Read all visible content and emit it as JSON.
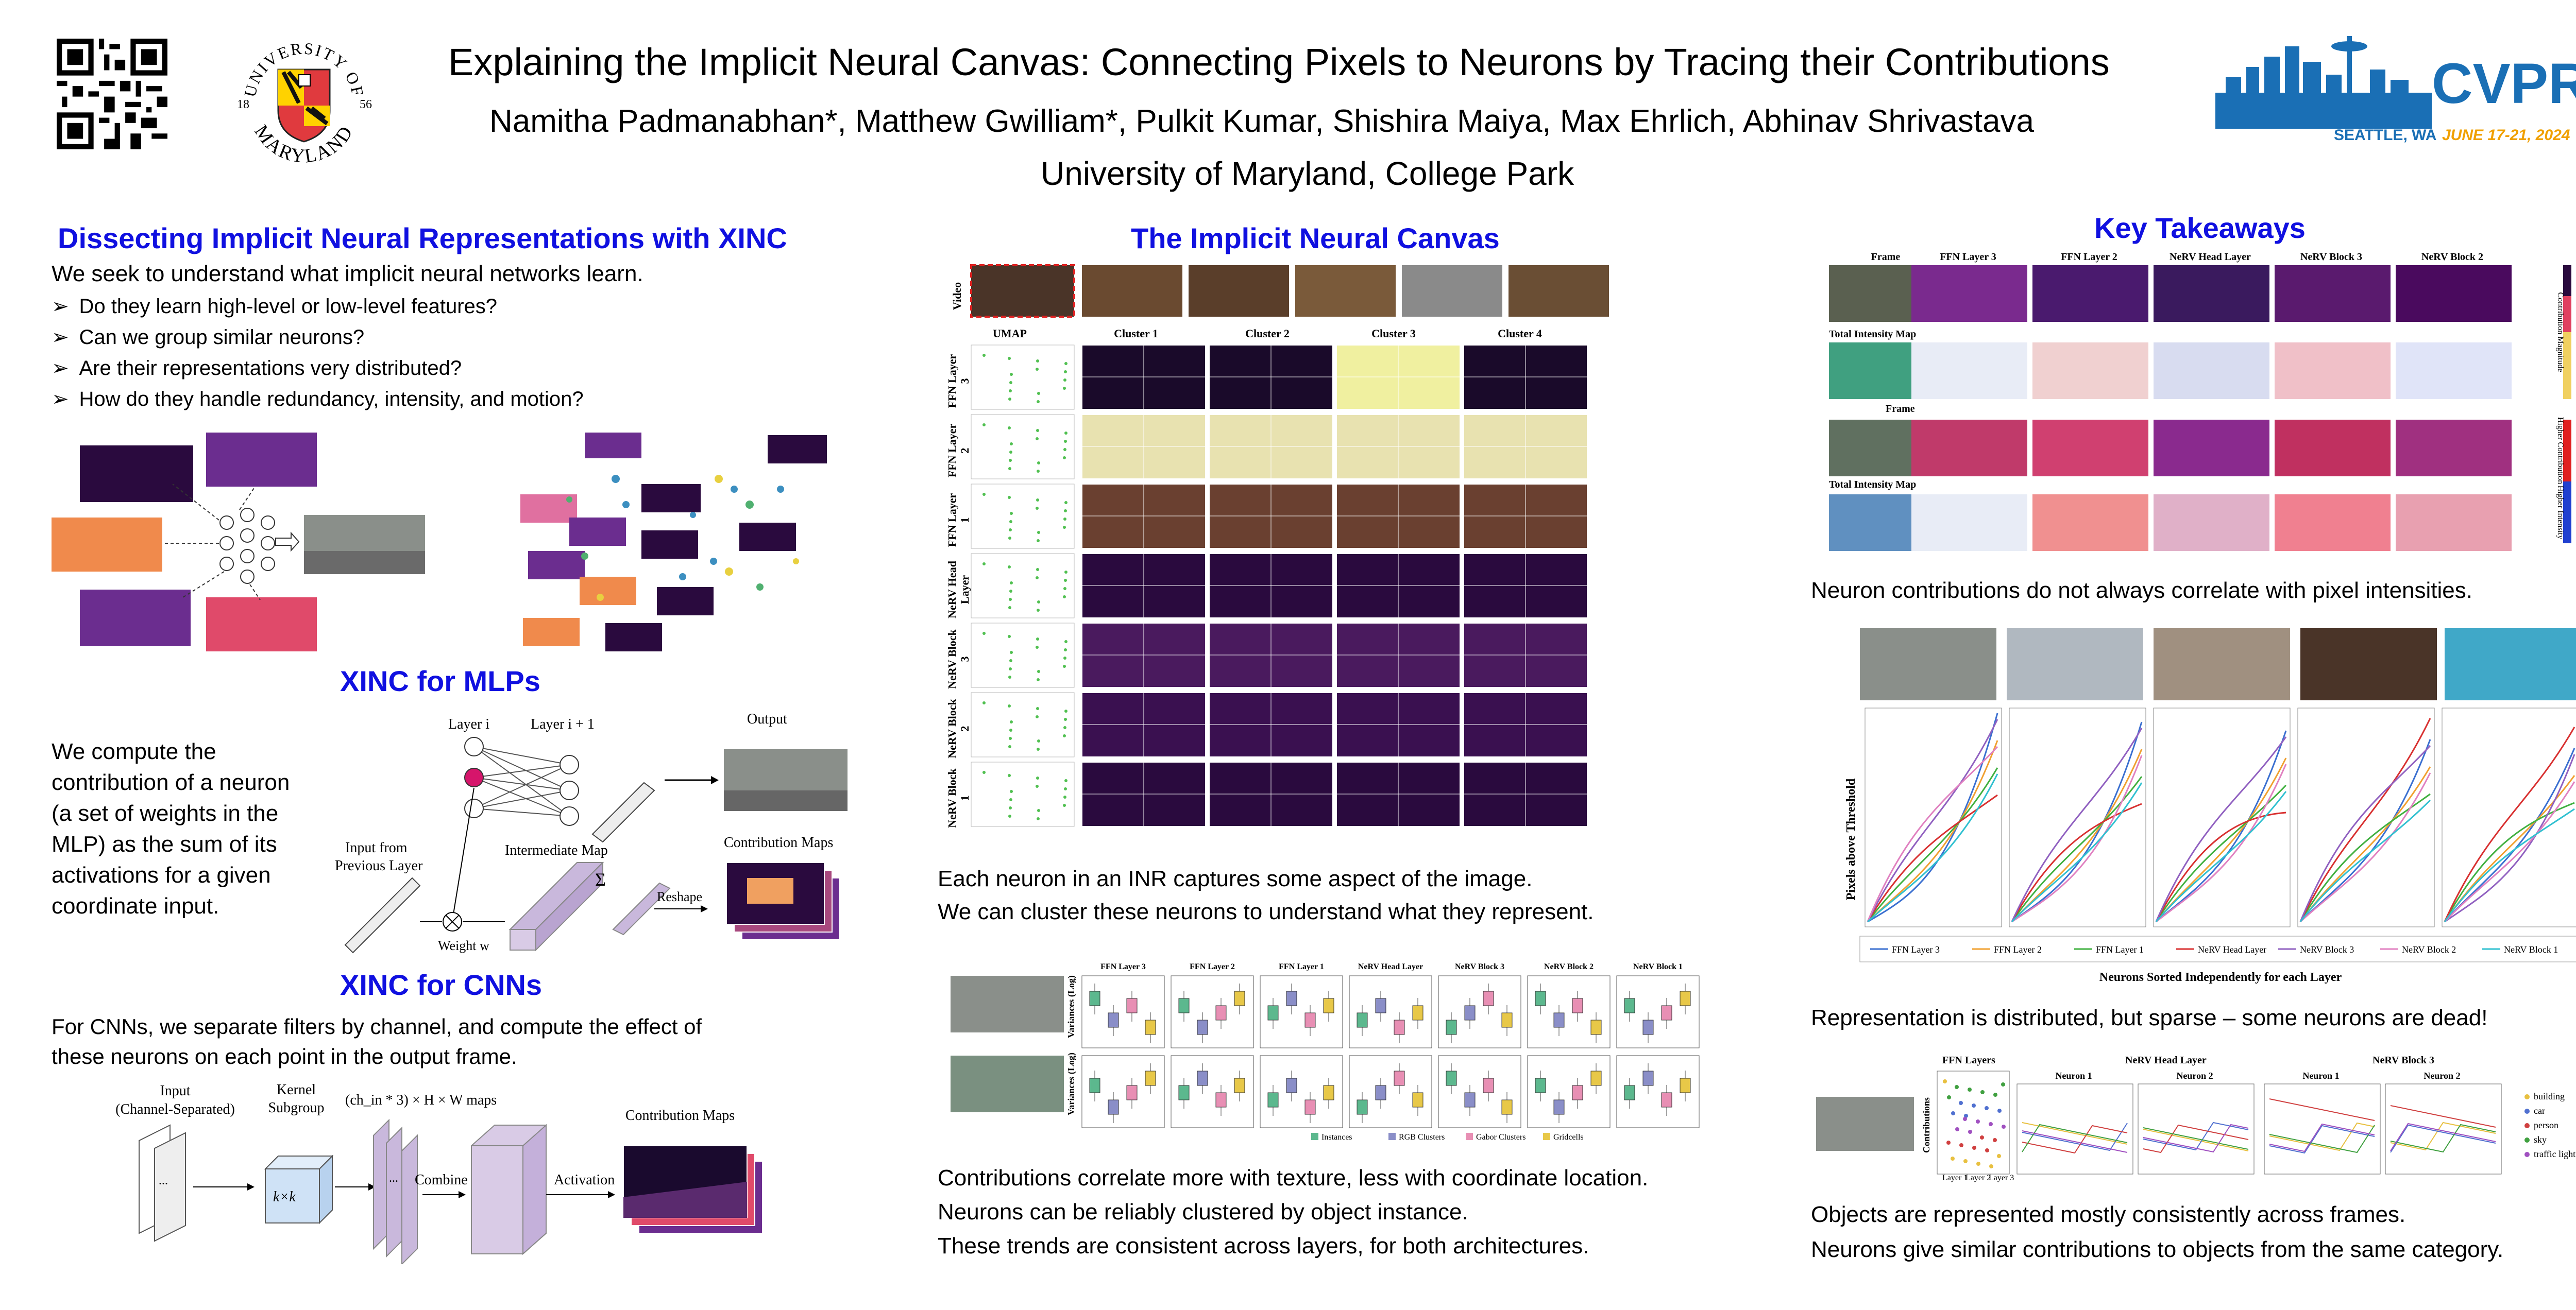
{
  "header": {
    "title": "Explaining the Implicit Neural Canvas: Connecting Pixels to Neurons by Tracing their Contributions",
    "authors": "Namitha Padmanabhan*, Matthew Gwilliam*, Pulkit Kumar, Shishira Maiya, Max Ehrlich, Abhinav Shrivastava",
    "affiliation": "University of Maryland, College Park",
    "umd_top": "UNIVERSITY OF",
    "umd_bottom": "MARYLAND",
    "umd_left": "18",
    "umd_right": "56",
    "cvpr": "CVPR",
    "cvpr_location": "SEATTLE, WA",
    "cvpr_dates": "JUNE 17-21, 2024"
  },
  "colors": {
    "heading": "#1010e0",
    "cvpr": "#1a6fb5",
    "umd_red": "#e03a3e",
    "umd_gold": "#ffd200",
    "magenta": "#d6156b",
    "map_purple": "#c9b8dc"
  },
  "left": {
    "heading": "Dissecting Implicit Neural Representations with XINC",
    "intro": "We seek to understand what implicit neural networks learn.",
    "bullets": [
      "Do they learn high-level or low-level features?",
      "Can we group similar neurons?",
      "Are their representations very distributed?",
      "How do they handle redundancy, intensity, and motion?"
    ],
    "mlp_heading": "XINC for MLPs",
    "mlp_text": [
      "We compute the",
      "contribution of a neuron",
      "(a set of weights in the",
      "MLP) as the sum of its",
      "activations for a given",
      "coordinate input."
    ],
    "mlp_fig": {
      "layer_i": "Layer i",
      "layer_i1": "Layer i + 1",
      "output": "Output",
      "input_from": "Input from",
      "previous_layer": "Previous Layer",
      "intermediate": "Intermediate Map",
      "contrib_maps": "Contribution Maps",
      "reshape": "Reshape",
      "weight": "Weight w",
      "sigma": "Σ"
    },
    "cnn_heading": "XINC for CNNs",
    "cnn_text": [
      "For CNNs, we separate filters by channel, and compute the effect of",
      "these neurons on each point in the output frame."
    ],
    "cnn_fig": {
      "input": "Input",
      "channel_sep": "(Channel-Separated)",
      "kernel": "Kernel",
      "subgroup": "Subgroup",
      "kxk": "k×k",
      "maps": "(ch_in * 3) × H × W maps",
      "combine": "Combine",
      "activation": "Activation",
      "contrib_maps": "Contribution Maps"
    }
  },
  "middle": {
    "heading": "The Implicit Neural Canvas",
    "grid": {
      "video_label": "Video",
      "columns": [
        "UMAP",
        "Cluster 1",
        "Cluster 2",
        "Cluster 3",
        "Cluster 4"
      ],
      "rows": [
        "FFN Layer 3",
        "FFN Layer 2",
        "FFN Layer 1",
        "NeRV Head Layer",
        "NeRV Block 3",
        "NeRV Block 2",
        "NeRV Block 1"
      ]
    },
    "text1": [
      "Each neuron in an INR captures some aspect of the image.",
      "We can cluster these neurons to understand what they represent."
    ],
    "box": {
      "columns": [
        "FFN Layer 3",
        "FFN Layer 2",
        "FFN Layer 1",
        "NeRV Head Layer",
        "NeRV Block 3",
        "NeRV Block 2",
        "NeRV Block 1"
      ],
      "ylabel": "Variances (Log)",
      "legend": [
        "Instances",
        "RGB Clusters",
        "Gabor Clusters",
        "Gridcells"
      ],
      "legend_colors": [
        "#5cb88e",
        "#8a8ec8",
        "#e88fb4",
        "#e8c848"
      ]
    },
    "text2": [
      "Contributions correlate more with texture, less with coordinate location.",
      "Neurons can be reliably clustered by object instance.",
      "These trends are consistent across layers, for both architectures."
    ]
  },
  "right": {
    "heading": "Key Takeaways",
    "intensity": {
      "columns": [
        "Frame",
        "FFN Layer 3",
        "FFN Layer 2",
        "NeRV Head Layer",
        "NeRV Block 3",
        "NeRV Block 2"
      ],
      "total": "Total Intensity Map",
      "frame": "Frame",
      "side1": "Contribution Magnitude",
      "side2": "Higher Contribution",
      "side3": "Higher Intensity"
    },
    "text1": "Neuron contributions do not always correlate with pixel intensities.",
    "lines": {
      "ylabel": "Pixels above Threshold",
      "xlabel": "Neurons Sorted Independently for each Layer",
      "legend": [
        "FFN Layer 3",
        "FFN Layer 2",
        "FFN Layer 1",
        "NeRV Head Layer",
        "NeRV Block 3",
        "NeRV Block 2",
        "NeRV Block 1"
      ],
      "legend_colors": [
        "#3a6fd0",
        "#f0a030",
        "#40b040",
        "#d83030",
        "#9060c0",
        "#e080c0",
        "#30c0d0"
      ]
    },
    "text2": "Representation is distributed, but sparse – some neurons are dead!",
    "objects": {
      "groups": [
        "FFN Layers",
        "NeRV Head Layer",
        "NeRV Block 3"
      ],
      "panels": [
        "Neuron 1",
        "Neuron 2",
        "Neuron 1",
        "Neuron 2"
      ],
      "ylabel": "Contributions",
      "ffn_ticks": [
        "Layer 1",
        "Layer 2",
        "Layer 3"
      ],
      "legend": [
        "building",
        "car",
        "person",
        "sky",
        "traffic light"
      ],
      "legend_colors": [
        "#e8c040",
        "#5070d0",
        "#d04040",
        "#40a040",
        "#a050c0"
      ]
    },
    "text3": [
      "Objects are represented mostly consistently across frames.",
      "Neurons give similar contributions to objects from the same category."
    ]
  }
}
